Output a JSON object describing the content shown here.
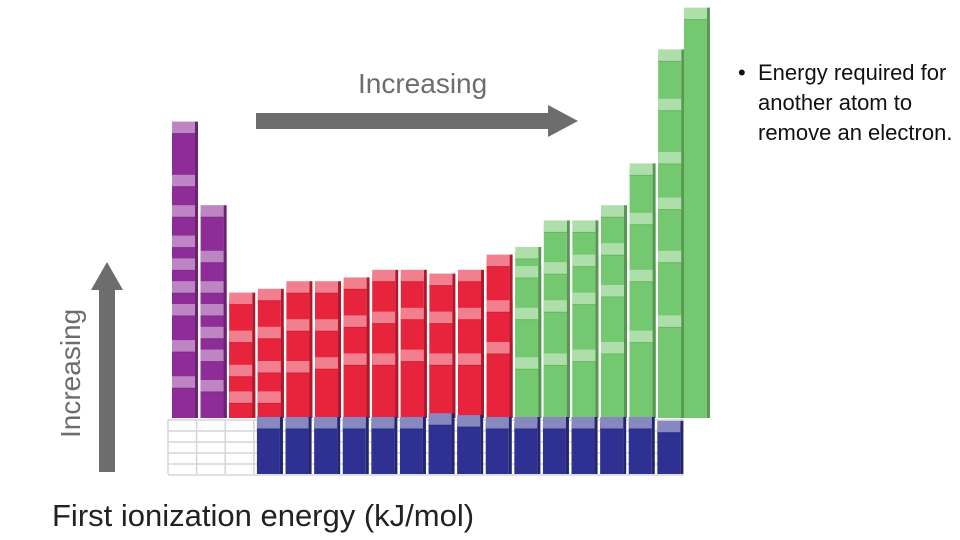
{
  "slide": {
    "bullet_text": "Energy required for another atom to remove an electron.",
    "bullet_glyph": "•"
  },
  "arrows": {
    "horizontal_label": "Increasing",
    "vertical_label": "Increasing",
    "color": "#6d6d6d"
  },
  "chart_data": {
    "type": "bar",
    "title": "First ionization energy (kJ/mol)",
    "xlabel": "",
    "ylabel": "",
    "colors": {
      "s_block": "#8e2d97",
      "d_block": "#e8233c",
      "p_block": "#74c86f",
      "f_block": "#2e3191",
      "grid": "#d3d6dc"
    },
    "series": [
      {
        "block": "s",
        "row": 0,
        "col": 0,
        "values": [
          0.22,
          0.41,
          0.6,
          0.72,
          0.84,
          0.96,
          1.12,
          1.28,
          1.56
        ]
      },
      {
        "block": "s",
        "row": 0,
        "col": 1,
        "values": [
          0.2,
          0.36,
          0.48,
          0.6,
          0.72,
          0.88,
          1.12
        ]
      },
      {
        "block": "d",
        "row": 0,
        "col": 2,
        "values": [
          0.14,
          0.28,
          0.46,
          0.66
        ]
      },
      {
        "block": "d",
        "row": 0,
        "col": 3,
        "values": [
          0.14,
          0.3,
          0.48,
          0.68
        ]
      },
      {
        "block": "d",
        "row": 0,
        "col": 4,
        "values": [
          0.3,
          0.52,
          0.72
        ]
      },
      {
        "block": "d",
        "row": 0,
        "col": 5,
        "values": [
          0.32,
          0.52,
          0.72
        ]
      },
      {
        "block": "d",
        "row": 0,
        "col": 6,
        "values": [
          0.34,
          0.54,
          0.74
        ]
      },
      {
        "block": "d",
        "row": 0,
        "col": 7,
        "values": [
          0.34,
          0.56,
          0.78
        ]
      },
      {
        "block": "d",
        "row": 0,
        "col": 8,
        "values": [
          0.36,
          0.58,
          0.78
        ]
      },
      {
        "block": "d",
        "row": 0,
        "col": 9,
        "values": [
          0.34,
          0.56,
          0.76
        ]
      },
      {
        "block": "d",
        "row": 0,
        "col": 10,
        "values": [
          0.34,
          0.58,
          0.78
        ]
      },
      {
        "block": "d",
        "row": 0,
        "col": 11,
        "values": [
          0.4,
          0.62,
          0.86
        ]
      },
      {
        "block": "p",
        "row": 0,
        "col": 12,
        "values": [
          0.32,
          0.58,
          0.8,
          0.9
        ]
      },
      {
        "block": "p",
        "row": 0,
        "col": 13,
        "values": [
          0.34,
          0.62,
          0.82,
          1.04
        ]
      },
      {
        "block": "p",
        "row": 0,
        "col": 14,
        "values": [
          0.36,
          0.66,
          0.86,
          1.04
        ]
      },
      {
        "block": "p",
        "row": 0,
        "col": 15,
        "values": [
          0.4,
          0.7,
          0.92,
          1.12
        ]
      },
      {
        "block": "p",
        "row": 0,
        "col": 16,
        "values": [
          0.46,
          0.78,
          1.08,
          1.34
        ]
      },
      {
        "block": "p",
        "row": 0,
        "col": 17,
        "values": [
          0.54,
          0.88,
          1.16,
          1.4,
          1.68,
          1.94
        ]
      },
      {
        "block": "p",
        "row": 0,
        "col": 17.9,
        "values": [
          2.16
        ]
      },
      {
        "block": "f",
        "row": 1,
        "col": 2.9,
        "values": [
          0.3
        ]
      },
      {
        "block": "f",
        "row": 1,
        "col": 3.9,
        "values": [
          0.3
        ]
      },
      {
        "block": "f",
        "row": 1,
        "col": 4.9,
        "values": [
          0.3
        ]
      },
      {
        "block": "f",
        "row": 1,
        "col": 5.9,
        "values": [
          0.3
        ]
      },
      {
        "block": "f",
        "row": 1,
        "col": 6.9,
        "values": [
          0.3
        ]
      },
      {
        "block": "f",
        "row": 1,
        "col": 7.9,
        "values": [
          0.3
        ]
      },
      {
        "block": "f",
        "row": 1,
        "col": 8.9,
        "values": [
          0.32
        ]
      },
      {
        "block": "f",
        "row": 1,
        "col": 9.9,
        "values": [
          0.31
        ]
      },
      {
        "block": "f",
        "row": 1,
        "col": 10.9,
        "values": [
          0.3
        ]
      },
      {
        "block": "f",
        "row": 1,
        "col": 11.9,
        "values": [
          0.3
        ]
      },
      {
        "block": "f",
        "row": 1,
        "col": 12.9,
        "values": [
          0.3
        ]
      },
      {
        "block": "f",
        "row": 1,
        "col": 13.9,
        "values": [
          0.3
        ]
      },
      {
        "block": "f",
        "row": 1,
        "col": 14.9,
        "values": [
          0.3
        ]
      },
      {
        "block": "f",
        "row": 1,
        "col": 15.9,
        "values": [
          0.3
        ]
      },
      {
        "block": "f",
        "row": 1,
        "col": 16.9,
        "values": [
          0.28
        ]
      }
    ]
  }
}
